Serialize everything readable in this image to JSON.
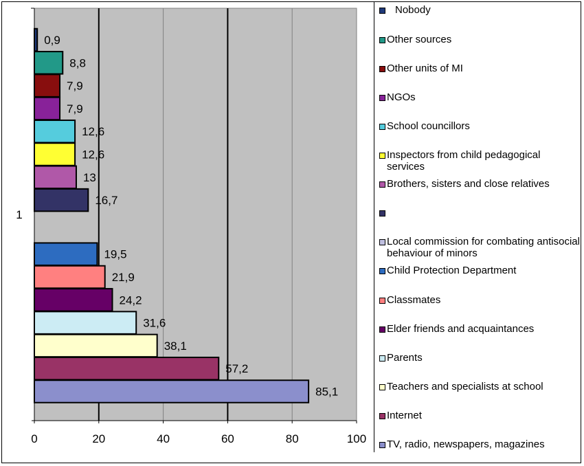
{
  "chart_data": {
    "type": "bar",
    "orientation": "horizontal",
    "xlim": [
      0,
      100
    ],
    "x_ticks": [
      "0",
      "20",
      "40",
      "60",
      "80",
      "100"
    ],
    "category_label": "1",
    "grid": true,
    "legend_position": "right",
    "series": [
      {
        "name": "TV, radio, newspapers, magazines",
        "value": 85.1,
        "label": "85,1",
        "color": "#8B8FCC"
      },
      {
        "name": "Internet",
        "value": 57.2,
        "label": "57,2",
        "color": "#993366"
      },
      {
        "name": "Teachers and specialists at school",
        "value": 38.1,
        "label": "38,1",
        "color": "#FFFFCC"
      },
      {
        "name": "Parents",
        "value": 31.6,
        "label": "31,6",
        "color": "#CCECF4"
      },
      {
        "name": "Elder friends and acquaintances",
        "value": 24.2,
        "label": "24,2",
        "color": "#660066"
      },
      {
        "name": "Classmates",
        "value": 21.9,
        "label": "21,9",
        "color": "#FF8080"
      },
      {
        "name": "Child Protection Department",
        "value": 19.5,
        "label": "19,5",
        "color": "#2D6CC0"
      },
      {
        "name": "Local commission for combating antisocial behaviour of minors",
        "value": 0,
        "label": "",
        "color": "#C0C0E0"
      },
      {
        "name": "",
        "value": 16.7,
        "label": "16,7",
        "color": "#333366"
      },
      {
        "name": "Brothers, sisters and close relatives",
        "value": 13,
        "label": "13",
        "color": "#B058A8"
      },
      {
        "name": "Inspectors from child pedagogical services",
        "value": 12.6,
        "label": "12,6",
        "color": "#FFFF33"
      },
      {
        "name": "School councillors",
        "value": 12.6,
        "label": "12,6",
        "color": "#55CCDD"
      },
      {
        "name": "NGOs",
        "value": 7.9,
        "label": "7,9",
        "color": "#882299"
      },
      {
        "name": "Other units of MI",
        "value": 7.9,
        "label": "7,9",
        "color": "#880E0E"
      },
      {
        "name": "Other sources",
        "value": 8.8,
        "label": "8,8",
        "color": "#229988"
      },
      {
        "name": "Nobody",
        "value": 0.9,
        "label": "0,9",
        "color": "#1F3A7A"
      }
    ],
    "legend_order": [
      {
        "text": "Nobody",
        "color": "#1F3A7A"
      },
      {
        "text": "Other sources",
        "color": "#229988"
      },
      {
        "text": "Other units of MI",
        "color": "#880E0E"
      },
      {
        "text": "NGOs",
        "color": "#882299"
      },
      {
        "text": "School councillors",
        "color": "#55CCDD"
      },
      {
        "text": "Inspectors from child pedagogical services",
        "color": "#FFFF33"
      },
      {
        "text": "Brothers, sisters and close relatives",
        "color": "#B058A8"
      },
      {
        "text": "",
        "color": "#333366"
      },
      {
        "text": "Local commission for combating antisocial behaviour of minors",
        "color": "#C0C0E0"
      },
      {
        "text": "Child Protection Department",
        "color": "#2D6CC0"
      },
      {
        "text": "Classmates",
        "color": "#FF8080"
      },
      {
        "text": "Elder friends and acquaintances",
        "color": "#660066"
      },
      {
        "text": "Parents",
        "color": "#CCECF4"
      },
      {
        "text": "Teachers and specialists at school",
        "color": "#FFFFCC"
      },
      {
        "text": "Internet",
        "color": "#993366"
      },
      {
        "text": "TV, radio, newspapers, magazines",
        "color": "#8B8FCC"
      }
    ],
    "plot_background": "#C0C0C0"
  }
}
